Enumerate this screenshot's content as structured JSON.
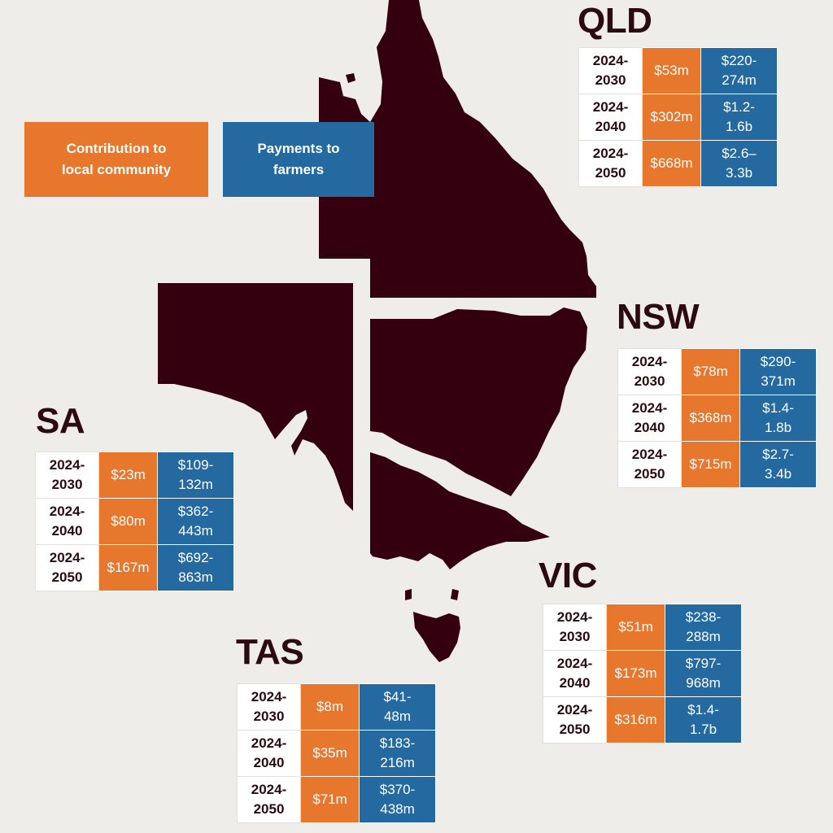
{
  "colors": {
    "background": "#EFEDE9",
    "map_fill": "#34000F",
    "contribution": "#E8772E",
    "payments": "#2469A0",
    "label_text": "#2C0A12"
  },
  "legend": {
    "contribution_label": "Contribution to\nlocal community",
    "payments_label": "Payments to\nfarmers"
  },
  "regions": {
    "qld": {
      "name": "QLD",
      "rows": [
        {
          "period": "2024-\n2030",
          "contribution": "$53m",
          "payments": "$220-\n274m"
        },
        {
          "period": "2024-\n2040",
          "contribution": "$302m",
          "payments": "$1.2-\n1.6b"
        },
        {
          "period": "2024-\n2050",
          "contribution": "$668m",
          "payments": "$2.6–\n3.3b"
        }
      ]
    },
    "nsw": {
      "name": "NSW",
      "rows": [
        {
          "period": "2024-\n2030",
          "contribution": "$78m",
          "payments": "$290-\n371m"
        },
        {
          "period": "2024-\n2040",
          "contribution": "$368m",
          "payments": "$1.4-\n1.8b"
        },
        {
          "period": "2024-\n2050",
          "contribution": "$715m",
          "payments": "$2.7-\n3.4b"
        }
      ]
    },
    "sa": {
      "name": "SA",
      "rows": [
        {
          "period": "2024-\n2030",
          "contribution": "$23m",
          "payments": "$109-\n132m"
        },
        {
          "period": "2024-\n2040",
          "contribution": "$80m",
          "payments": "$362-\n443m"
        },
        {
          "period": "2024-\n2050",
          "contribution": "$167m",
          "payments": "$692-\n863m"
        }
      ]
    },
    "vic": {
      "name": "VIC",
      "rows": [
        {
          "period": "2024-\n2030",
          "contribution": "$51m",
          "payments": "$238-\n288m"
        },
        {
          "period": "2024-\n2040",
          "contribution": "$173m",
          "payments": "$797-\n968m"
        },
        {
          "period": "2024-\n2050",
          "contribution": "$316m",
          "payments": "$1.4-\n1.7b"
        }
      ]
    },
    "tas": {
      "name": "TAS",
      "rows": [
        {
          "period": "2024-\n2030",
          "contribution": "$8m",
          "payments": "$41-\n48m"
        },
        {
          "period": "2024-\n2040",
          "contribution": "$35m",
          "payments": "$183-\n216m"
        },
        {
          "period": "2024-\n2050",
          "contribution": "$71m",
          "payments": "$370-\n438m"
        }
      ]
    }
  }
}
